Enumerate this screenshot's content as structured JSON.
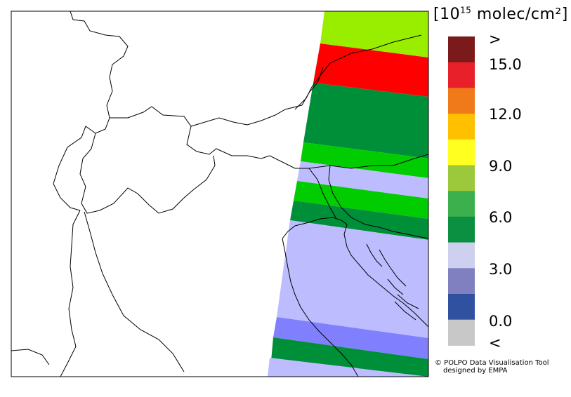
{
  "legend": {
    "unit_prefix": "[10",
    "unit_exp": "15",
    "unit_suffix": " molec/cm²]",
    "ticks": [
      ">",
      "15.0",
      "12.0",
      "9.0",
      "6.0",
      "3.0",
      "0.0",
      "<"
    ],
    "colors": [
      "#7a1a1a",
      "#e8202a",
      "#f07a1a",
      "#ffc000",
      "#ffff20",
      "#9cc83c",
      "#3cb04c",
      "#0a9040",
      "#cfcfef",
      "#8080c0",
      "#3050a0",
      "#c8c8c8"
    ]
  },
  "swath": {
    "bands": [
      {
        "color": "#99ee00"
      },
      {
        "color": "#ff0000"
      },
      {
        "color": "#008f39"
      },
      {
        "color": "#00cc00"
      },
      {
        "color": "#bcbcff"
      },
      {
        "color": "#00cc00"
      },
      {
        "color": "#008f39"
      },
      {
        "color": "#bcbcff"
      },
      {
        "color": "#8080ff"
      },
      {
        "color": "#008f39"
      },
      {
        "color": "#bcbcff"
      }
    ]
  },
  "credit": {
    "line1": "© POLPO Data Visualisation Tool",
    "line2": "designed by EMPA"
  }
}
